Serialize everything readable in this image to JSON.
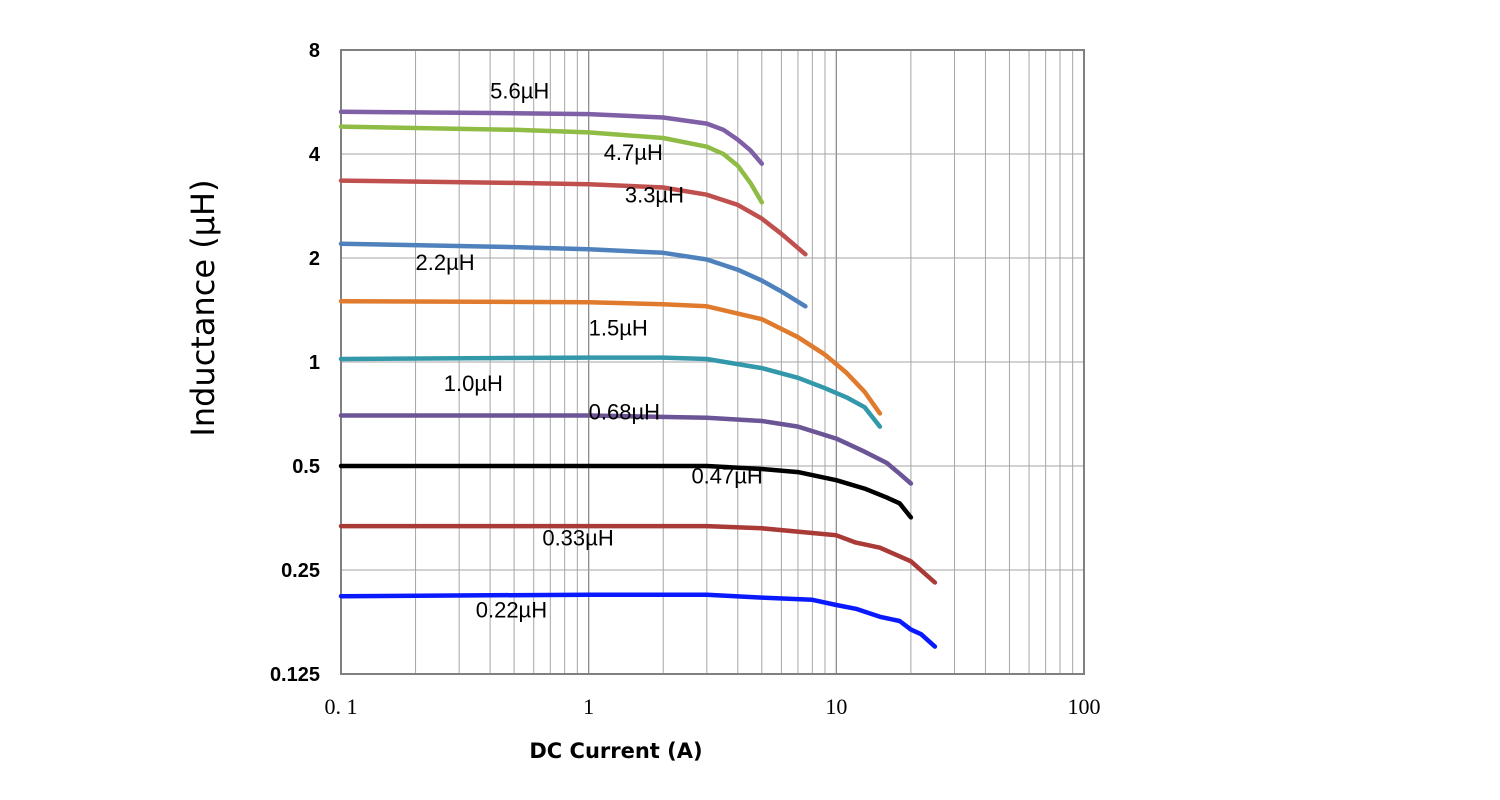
{
  "chart_data": {
    "type": "line",
    "title": "",
    "xlabel": "DC Current (A)",
    "ylabel": "Inductance (µH)",
    "xscale": "log",
    "yscale": "log2",
    "xlim": [
      0.1,
      100
    ],
    "ylim": [
      0.125,
      8
    ],
    "grid": true,
    "x_ticks": [
      0.1,
      1,
      10,
      100
    ],
    "x_tick_labels": [
      "0. 1",
      "1",
      "10",
      "100"
    ],
    "y_ticks": [
      0.125,
      0.25,
      0.5,
      1,
      2,
      4,
      8
    ],
    "y_tick_labels": [
      "0.125",
      "0.25",
      "0.5",
      "1",
      "2",
      "4",
      "8"
    ],
    "series": [
      {
        "name": "5.6µH",
        "color": "#7f5fa6",
        "x": [
          0.1,
          0.5,
          1,
          2,
          3,
          3.5,
          4,
          4.5,
          5
        ],
        "y": [
          5.3,
          5.25,
          5.22,
          5.1,
          4.9,
          4.7,
          4.4,
          4.1,
          3.75
        ]
      },
      {
        "name": "4.7µH",
        "color": "#8fbc45",
        "x": [
          0.1,
          0.5,
          1,
          2,
          3,
          3.5,
          4,
          4.5,
          5
        ],
        "y": [
          4.8,
          4.7,
          4.62,
          4.45,
          4.2,
          4.0,
          3.7,
          3.3,
          2.9
        ]
      },
      {
        "name": "3.3µH",
        "color": "#c0504d",
        "x": [
          0.1,
          0.5,
          1,
          2,
          3,
          4,
          5,
          6,
          7.5
        ],
        "y": [
          3.35,
          3.3,
          3.27,
          3.2,
          3.05,
          2.85,
          2.6,
          2.35,
          2.05
        ]
      },
      {
        "name": "2.2µH",
        "color": "#4f81bd",
        "x": [
          0.1,
          0.5,
          1,
          2,
          3,
          4,
          5,
          6,
          7.5
        ],
        "y": [
          2.2,
          2.15,
          2.12,
          2.07,
          1.98,
          1.85,
          1.72,
          1.6,
          1.45
        ]
      },
      {
        "name": "1.5µH",
        "color": "#e07b2e",
        "x": [
          0.1,
          1,
          2,
          3,
          5,
          7,
          9,
          11,
          13,
          15
        ],
        "y": [
          1.5,
          1.49,
          1.47,
          1.45,
          1.33,
          1.18,
          1.05,
          0.93,
          0.82,
          0.71
        ]
      },
      {
        "name": "1.0µH",
        "color": "#3399aa",
        "x": [
          0.1,
          1,
          2,
          3,
          5,
          7,
          9,
          11,
          13,
          15
        ],
        "y": [
          1.02,
          1.03,
          1.03,
          1.02,
          0.96,
          0.9,
          0.84,
          0.79,
          0.74,
          0.65
        ]
      },
      {
        "name": "0.68µH",
        "color": "#6b5596",
        "x": [
          0.1,
          1,
          3,
          5,
          7,
          10,
          13,
          16,
          18,
          20
        ],
        "y": [
          0.7,
          0.7,
          0.69,
          0.675,
          0.65,
          0.6,
          0.55,
          0.51,
          0.475,
          0.445
        ]
      },
      {
        "name": "0.47µH",
        "color": "#000000",
        "x": [
          0.1,
          1,
          3,
          5,
          7,
          10,
          13,
          16,
          18,
          20
        ],
        "y": [
          0.5,
          0.5,
          0.5,
          0.49,
          0.48,
          0.455,
          0.43,
          0.405,
          0.39,
          0.355
        ]
      },
      {
        "name": "0.33µH",
        "color": "#a93a36",
        "x": [
          0.1,
          1,
          3,
          5,
          8,
          10,
          12,
          15,
          20,
          25
        ],
        "y": [
          0.335,
          0.335,
          0.335,
          0.33,
          0.32,
          0.315,
          0.3,
          0.29,
          0.265,
          0.23
        ]
      },
      {
        "name": "0.22µH",
        "color": "#0a1aff",
        "x": [
          0.1,
          1,
          3,
          5,
          8,
          10,
          12,
          15,
          18,
          20,
          22,
          25
        ],
        "y": [
          0.21,
          0.212,
          0.212,
          0.208,
          0.205,
          0.198,
          0.193,
          0.183,
          0.178,
          0.168,
          0.163,
          0.15
        ]
      }
    ],
    "annotations": [
      {
        "text": "5.6µH",
        "x": 0.4,
        "y": 6.1
      },
      {
        "text": "4.7µH",
        "x": 1.15,
        "y": 4.05
      },
      {
        "text": "3.3µH",
        "x": 1.4,
        "y": 3.05
      },
      {
        "text": "2.2µH",
        "x": 0.2,
        "y": 1.95
      },
      {
        "text": "1.5µH",
        "x": 1.0,
        "y": 1.26
      },
      {
        "text": "1.0µH",
        "x": 0.26,
        "y": 0.87
      },
      {
        "text": "0.68µH",
        "x": 1.0,
        "y": 0.72
      },
      {
        "text": "0.47µH",
        "x": 2.6,
        "y": 0.47
      },
      {
        "text": "0.33µH",
        "x": 0.65,
        "y": 0.31
      },
      {
        "text": "0.22µH",
        "x": 0.35,
        "y": 0.192
      }
    ]
  }
}
